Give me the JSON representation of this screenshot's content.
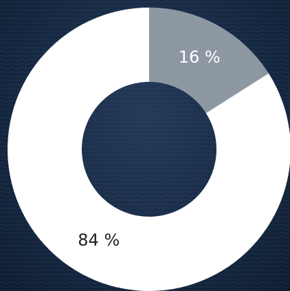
{
  "chart_data": {
    "type": "donut",
    "values": [
      16,
      84
    ],
    "value_labels": [
      "16 %",
      "84 %"
    ],
    "colors": [
      "#8e98a3",
      "#ffffff"
    ],
    "label_colors": [
      "#ffffff",
      "#222222"
    ]
  }
}
